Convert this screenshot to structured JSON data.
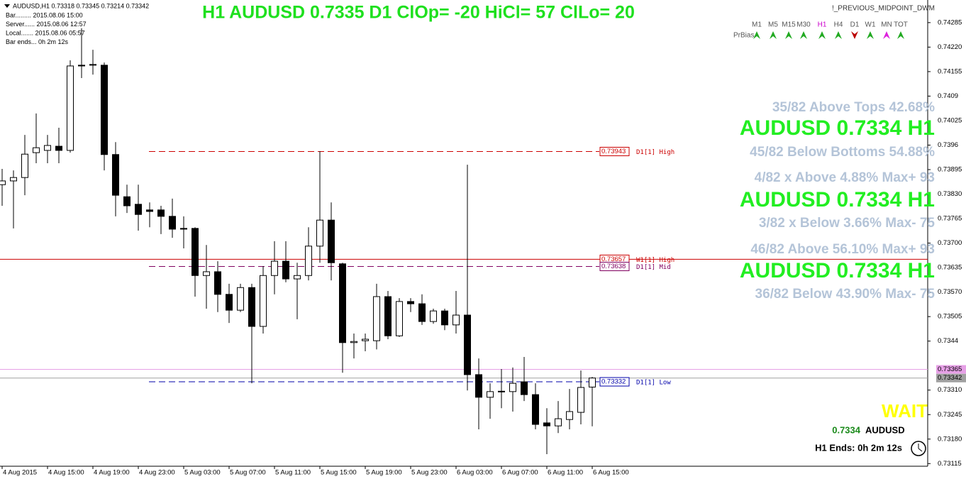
{
  "chart_data": {
    "type": "candlestick",
    "symbol_line": "AUDUSD,H1  0.73318 0.73345 0.73214 0.73342",
    "title": "H1 AUDUSD 0.7335 D1 ClOp= -20 HiCl= 57 ClLo= 20",
    "indicator_name": "!_PREVIOUS_MIDPOINT_DWM",
    "categories": [
      "4 Aug 2015",
      null,
      null,
      null,
      "4 Aug 15:00",
      null,
      null,
      null,
      "4 Aug 19:00",
      null,
      null,
      null,
      "4 Aug 23:00",
      null,
      null,
      null,
      "5 Aug 03:00",
      null,
      null,
      null,
      "5 Aug 07:00",
      null,
      null,
      null,
      "5 Aug 11:00",
      null,
      null,
      null,
      "5 Aug 15:00",
      null,
      null,
      null,
      "5 Aug 19:00",
      null,
      null,
      null,
      "5 Aug 23:00",
      null,
      null,
      null,
      "6 Aug 03:00",
      null,
      null,
      null,
      "6 Aug 07:00",
      null,
      null,
      null,
      "6 Aug 11:00",
      null,
      null,
      null,
      "6 Aug 15:00"
    ],
    "open": [
      0.73855,
      0.73865,
      0.73874,
      0.7394,
      0.73946,
      0.73957,
      0.73946,
      0.74172,
      0.74172,
      0.74172,
      0.73935,
      0.73823,
      0.73803,
      0.73788,
      0.73788,
      0.73771,
      0.73739,
      0.73739,
      0.73614,
      0.73624,
      0.73564,
      0.73522,
      0.73582,
      0.73479,
      0.73614,
      0.73652,
      0.73605,
      0.73614,
      0.73692,
      0.73761,
      0.73645,
      0.73436,
      0.73441,
      0.73441,
      0.73558,
      0.73454,
      0.73545,
      0.73539,
      0.73492,
      0.7352,
      0.73483,
      0.73509,
      0.73351,
      0.73291,
      0.73306,
      0.73306,
      0.73332,
      0.73298,
      0.73223,
      0.73215,
      0.73232,
      0.73251,
      0.73318
    ],
    "high": [
      0.73897,
      0.73893,
      0.73987,
      0.74044,
      0.73987,
      0.74006,
      0.74185,
      0.7427,
      0.74213,
      0.74179,
      0.73968,
      0.73855,
      0.73855,
      0.73808,
      0.73799,
      0.73818,
      0.73771,
      0.73742,
      0.73695,
      0.73652,
      0.73592,
      0.73592,
      0.73592,
      0.73639,
      0.73705,
      0.73705,
      0.73648,
      0.73742,
      0.73944,
      0.73808,
      0.73648,
      0.7346,
      0.7346,
      0.73592,
      0.73573,
      0.73554,
      0.73554,
      0.73564,
      0.73526,
      0.73526,
      0.73573,
      0.73908,
      0.73394,
      0.73328,
      0.73366,
      0.7337,
      0.73398,
      0.73328,
      0.73262,
      0.73281,
      0.73313,
      0.73362,
      0.73345
    ],
    "low": [
      0.73799,
      0.73739,
      0.73827,
      0.73912,
      0.73912,
      0.73912,
      0.7394,
      0.74138,
      0.74147,
      0.73893,
      0.73771,
      0.7378,
      0.73733,
      0.73742,
      0.73724,
      0.73714,
      0.73686,
      0.73558,
      0.73526,
      0.73517,
      0.73488,
      0.73517,
      0.73328,
      0.7346,
      0.73564,
      0.73596,
      0.73498,
      0.73601,
      0.73648,
      0.73601,
      0.73356,
      0.73394,
      0.73413,
      0.73418,
      0.73445,
      0.73451,
      0.73517,
      0.73483,
      0.73486,
      0.73469,
      0.7346,
      0.73309,
      0.73206,
      0.73234,
      0.73262,
      0.73253,
      0.73281,
      0.73206,
      0.7314,
      0.73196,
      0.73206,
      0.73219,
      0.73214
    ],
    "close": [
      0.73865,
      0.73874,
      0.73936,
      0.73953,
      0.73959,
      0.73946,
      0.7417,
      0.7417,
      0.74174,
      0.73935,
      0.73827,
      0.73799,
      0.73776,
      0.73784,
      0.73771,
      0.73737,
      0.73737,
      0.73614,
      0.73624,
      0.73564,
      0.73522,
      0.73582,
      0.73479,
      0.73614,
      0.73652,
      0.73605,
      0.73614,
      0.73692,
      0.73761,
      0.73648,
      0.73436,
      0.73439,
      0.73445,
      0.73558,
      0.73454,
      0.73545,
      0.73539,
      0.73492,
      0.7352,
      0.73483,
      0.73509,
      0.73351,
      0.73291,
      0.73306,
      0.73307,
      0.73328,
      0.73298,
      0.73219,
      0.73215,
      0.73234,
      0.73253,
      0.73317,
      0.73342
    ],
    "up_color": "#ffffff",
    "down_color": "#000000",
    "ylim": [
      0.73108,
      0.74345
    ],
    "yticks": [
      0.74285,
      {
        "value": 0.7422,
        "label": "0.74220"
      },
      0.74155,
      0.7409,
      0.74025,
      0.7396,
      0.73895,
      {
        "value": 0.7383,
        "label": "0.73830"
      },
      0.73765,
      {
        "value": 0.737,
        "label": "0.73700"
      },
      0.73635,
      {
        "value": 0.7357,
        "label": "0.73570"
      },
      0.73505,
      0.7344,
      {
        "value": 0.7331,
        "label": "0.73310"
      },
      0.73245,
      {
        "value": 0.7318,
        "label": "0.73180"
      },
      0.73115
    ],
    "levels": [
      {
        "value": 0.73943,
        "name": "D1[1] High",
        "color": "#cc0000",
        "style": "dashed"
      },
      {
        "value": 0.73657,
        "name": "W1[1] High",
        "color": "#cc0000",
        "style": "solid"
      },
      {
        "value": 0.73638,
        "name": "D1[1] Mid",
        "color": "#800060",
        "style": "dashed"
      },
      {
        "value": 0.73332,
        "name": "D1[1] Low",
        "color": "#0000aa",
        "style": "dashed"
      }
    ],
    "price_lines": [
      {
        "value": 0.73365,
        "color": "#e6a0e6"
      },
      {
        "value": 0.73342,
        "color": "#a0a0a0"
      }
    ]
  },
  "info": [
    "Bar......... 2015.08.06 15:00",
    "Server...... 2015.08.06 12:57",
    "Local....... 2015.08.06 05:57",
    "Bar ends... 0h 2m 12s"
  ],
  "timeframes": [
    "M1",
    "M5",
    "M15",
    "M30",
    "H1",
    "H4",
    "D1",
    "W1",
    "MN",
    "TOT"
  ],
  "bias_label": "PrBias",
  "panel": [
    {
      "text": "35/82 Above Tops 42.68%",
      "kind": "stat"
    },
    {
      "text": "AUDUSD 0.7334 H1",
      "kind": "big"
    },
    {
      "text": "45/82 Below Bottoms 54.88%",
      "kind": "stat"
    },
    {
      "text": "4/82 x Above 4.88% Max+ 93",
      "kind": "stat"
    },
    {
      "text": "AUDUSD 0.7334 H1",
      "kind": "big"
    },
    {
      "text": "3/82 x Below 3.66% Max- 75",
      "kind": "stat"
    },
    {
      "text": "46/82 Above 56.10% Max+ 93",
      "kind": "stat"
    },
    {
      "text": "AUDUSD 0.7334 H1",
      "kind": "big"
    },
    {
      "text": "36/82 Below 43.90% Max- 75",
      "kind": "stat"
    }
  ],
  "status": {
    "signal": "WAIT",
    "price": "0.7334",
    "symbol": "AUDUSD",
    "bar_end": "H1 Ends: 0h 2m 12s"
  }
}
